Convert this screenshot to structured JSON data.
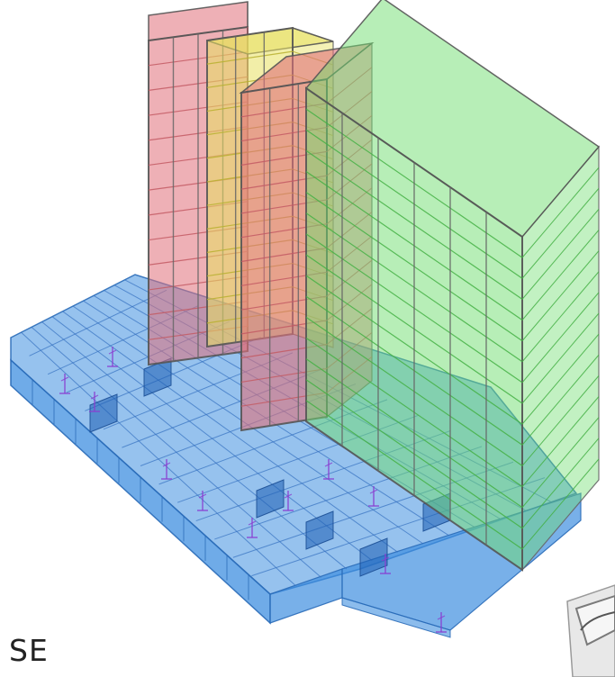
{
  "view_label": "SE",
  "model": {
    "zones": [
      {
        "name": "podium",
        "color": "#3f8fe0"
      },
      {
        "name": "tower-red",
        "color": "#e0707a"
      },
      {
        "name": "tower-yellow",
        "color": "#e8e060"
      },
      {
        "name": "tower-green",
        "color": "#6fde6f"
      }
    ]
  },
  "icons": {
    "view-cube": "view-cube-icon"
  }
}
